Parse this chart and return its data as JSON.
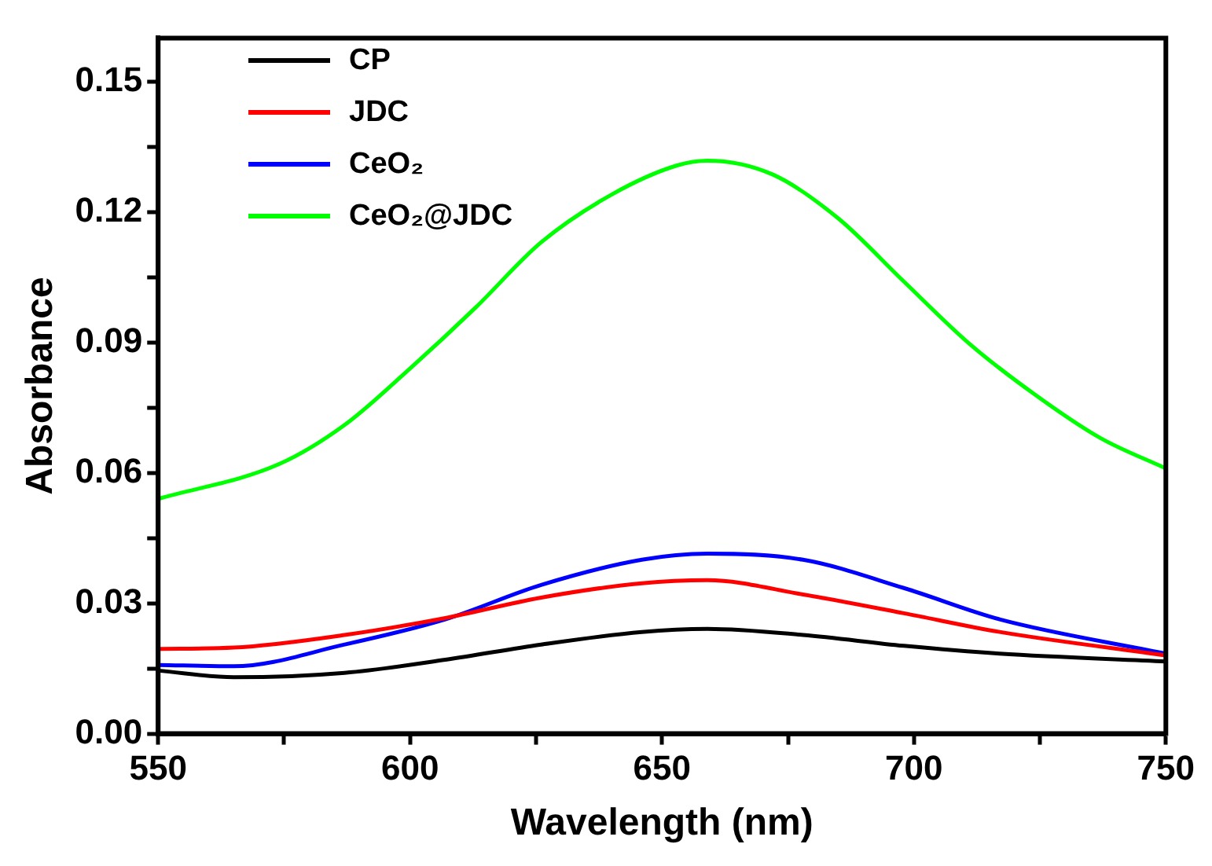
{
  "chart_data": {
    "type": "line",
    "xlabel": "Wavelength (nm)",
    "ylabel": "Absorbance",
    "xlim": [
      550,
      750
    ],
    "ylim": [
      0,
      0.16
    ],
    "xticks": [
      550,
      {
        "value": 575,
        "label": null
      },
      600,
      {
        "value": 625,
        "label": null
      },
      650,
      {
        "value": 675,
        "label": null
      },
      700,
      {
        "value": 725,
        "label": null
      },
      750
    ],
    "yticks": [
      {
        "value": 0,
        "label": "0.00"
      },
      {
        "value": 0.015,
        "label": null
      },
      {
        "value": 0.03,
        "label": "0.03"
      },
      {
        "value": 0.045,
        "label": null
      },
      {
        "value": 0.06,
        "label": "0.06"
      },
      {
        "value": 0.075,
        "label": null
      },
      {
        "value": 0.09,
        "label": "0.09"
      },
      {
        "value": 0.105,
        "label": null
      },
      {
        "value": 0.12,
        "label": "0.12"
      },
      {
        "value": 0.135,
        "label": null
      },
      {
        "value": 0.15,
        "label": "0.15"
      }
    ],
    "legend": "top left",
    "grid": false,
    "marker": "none",
    "line_style": "solid",
    "x": [
      550,
      565,
      587,
      607,
      626,
      646,
      659,
      678,
      698,
      717,
      750
    ],
    "series": [
      {
        "name": "CP",
        "color": "#000000",
        "values": [
          0.0145,
          0.013,
          0.014,
          0.017,
          0.0205,
          0.0234,
          0.0241,
          0.0227,
          0.0202,
          0.0184,
          0.0166
        ]
      },
      {
        "name": "JDC",
        "color": "#ff0000",
        "values": [
          0.0195,
          0.0198,
          0.0227,
          0.0266,
          0.0313,
          0.0346,
          0.0353,
          0.032,
          0.0277,
          0.0234,
          0.018
        ]
      },
      {
        "name": "CeO₂",
        "color": "#0000ff",
        "values": [
          0.0158,
          0.0155,
          0.0205,
          0.0263,
          0.0342,
          0.04,
          0.0414,
          0.04,
          0.0335,
          0.0263,
          0.0184
        ]
      },
      {
        "name": "CeO₂@JDC",
        "color": "#00ff00",
        "x": [
          550,
          574,
          587,
          600,
          613,
          626,
          640,
          653,
          659,
          672,
          685,
          698,
          711,
          724,
          737,
          750
        ],
        "values": [
          0.054,
          0.062,
          0.071,
          0.084,
          0.098,
          0.113,
          0.124,
          0.1307,
          0.1318,
          0.1286,
          0.1185,
          0.104,
          0.0897,
          0.078,
          0.068,
          0.061
        ]
      }
    ]
  }
}
